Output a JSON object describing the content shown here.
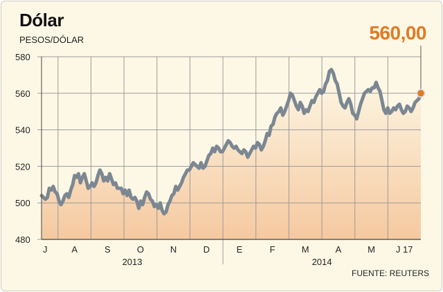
{
  "title": "Dólar",
  "subtitle": "PESOS/DÓLAR",
  "last_value_label": "560,00",
  "source": "FUENTE: REUTERS",
  "colors": {
    "line": "#7b8792",
    "area_top": "#fdf8e6",
    "area_bottom": "#f5c9a0",
    "accent": "#e07b22",
    "grid": "#9a9a9a"
  },
  "chart_data": {
    "type": "line",
    "title": "Dólar",
    "ylabel": "PESOS/DÓLAR",
    "ylim": [
      480,
      580
    ],
    "yticks": [
      480,
      500,
      520,
      540,
      560,
      580
    ],
    "month_labels": [
      "J",
      "A",
      "S",
      "O",
      "N",
      "D",
      "E",
      "F",
      "M",
      "A",
      "M",
      "J 17"
    ],
    "year_labels": [
      "2013",
      "2014"
    ],
    "grid": true,
    "series": [
      {
        "values": [
          504,
          503,
          502,
          503,
          508,
          507,
          509,
          506,
          505,
          501,
          499,
          501,
          504,
          505,
          503,
          507,
          510,
          515,
          514,
          516,
          511,
          514,
          516,
          512,
          508,
          509,
          511,
          509,
          511,
          515,
          518,
          516,
          512,
          514,
          512,
          516,
          513,
          510,
          511,
          508,
          508,
          508,
          505,
          507,
          504,
          507,
          503,
          502,
          503,
          501,
          497,
          501,
          499,
          503,
          506,
          505,
          502,
          501,
          498,
          499,
          497,
          500,
          496,
          494,
          495,
          499,
          501,
          504,
          505,
          509,
          507,
          509,
          511,
          514,
          516,
          518,
          518,
          520,
          522,
          521,
          520,
          519,
          522,
          519,
          520,
          523,
          526,
          527,
          530,
          528,
          531,
          530,
          528,
          528,
          530,
          532,
          534,
          533,
          531,
          530,
          531,
          529,
          528,
          527,
          529,
          528,
          525,
          527,
          529,
          531,
          530,
          533,
          532,
          529,
          531,
          534,
          538,
          537,
          542,
          543,
          547,
          549,
          550,
          552,
          548,
          550,
          553,
          556,
          560,
          559,
          556,
          553,
          551,
          555,
          553,
          549,
          551,
          550,
          553,
          556,
          555,
          558,
          560,
          562,
          560,
          561,
          565,
          567,
          572,
          573,
          571,
          567,
          565,
          560,
          555,
          553,
          552,
          555,
          557,
          554,
          549,
          548,
          546,
          550,
          554,
          557,
          560,
          561,
          562,
          561,
          563,
          563,
          566,
          563,
          561,
          556,
          551,
          549,
          552,
          549,
          550,
          552,
          551,
          553,
          554,
          551,
          549,
          550,
          553,
          552,
          550,
          552,
          555,
          556,
          557,
          560
        ]
      }
    ]
  }
}
